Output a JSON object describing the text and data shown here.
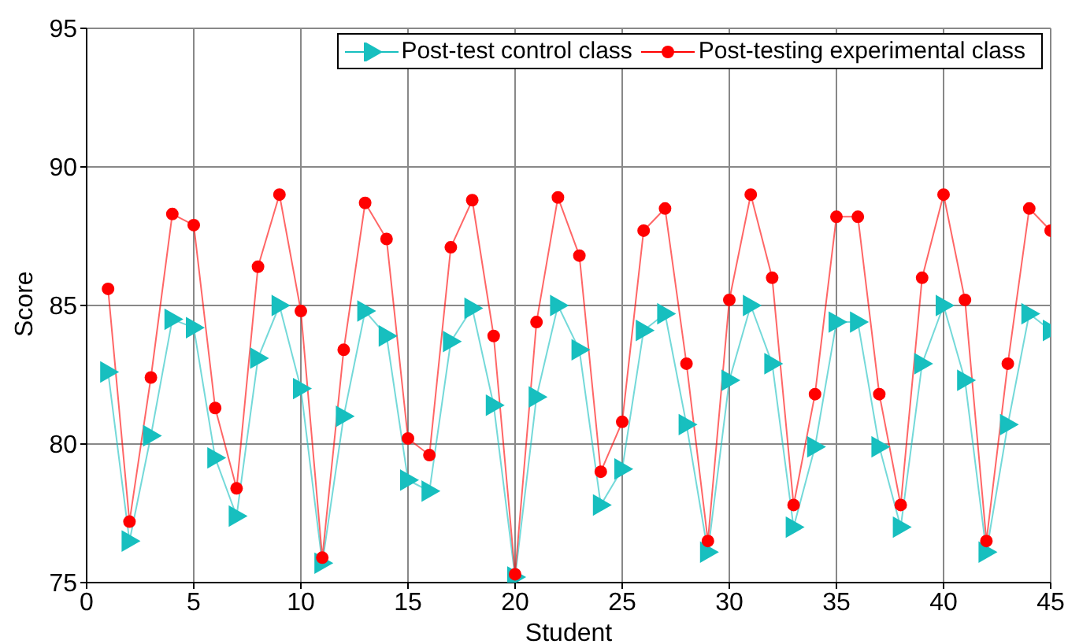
{
  "chart_data": {
    "type": "line",
    "xlabel": "Student",
    "ylabel": "Score",
    "x": [
      1,
      2,
      3,
      4,
      5,
      6,
      7,
      8,
      9,
      10,
      11,
      12,
      13,
      14,
      15,
      16,
      17,
      18,
      19,
      20,
      21,
      22,
      23,
      24,
      25,
      26,
      27,
      28,
      29,
      30,
      31,
      32,
      33,
      34,
      35,
      36,
      37,
      38,
      39,
      40,
      41,
      42,
      43,
      44,
      45
    ],
    "series": [
      {
        "name": "Post-test control class",
        "color": "#17bfbf",
        "marker": "triangle",
        "values": [
          82.6,
          76.5,
          80.3,
          84.5,
          84.2,
          79.5,
          77.4,
          83.1,
          85.0,
          82.0,
          75.7,
          81.0,
          84.8,
          83.9,
          78.7,
          78.3,
          83.7,
          84.9,
          81.4,
          75.2,
          81.7,
          85.0,
          83.4,
          77.8,
          79.1,
          84.1,
          84.7,
          80.7,
          76.1,
          82.3,
          85.0,
          82.9,
          77.0,
          79.9,
          84.4,
          84.4,
          79.9,
          77.0,
          82.9,
          85.0,
          82.3,
          76.1,
          80.7,
          84.7,
          84.1
        ]
      },
      {
        "name": "Post-testing experimental class",
        "color": "#ff0000",
        "marker": "circle",
        "values": [
          85.6,
          77.2,
          82.4,
          88.3,
          87.9,
          81.3,
          78.4,
          86.4,
          89.0,
          84.8,
          75.9,
          83.4,
          88.7,
          87.4,
          80.2,
          79.6,
          87.1,
          88.8,
          83.9,
          75.3,
          84.4,
          88.9,
          86.8,
          79.0,
          80.8,
          87.7,
          88.5,
          82.9,
          76.5,
          85.2,
          89.0,
          86.0,
          77.8,
          81.8,
          88.2,
          88.2,
          81.8,
          77.8,
          86.0,
          89.0,
          85.2,
          76.5,
          82.9,
          88.5,
          87.7
        ]
      }
    ],
    "xlim": [
      0,
      45
    ],
    "xticks": [
      0,
      5,
      10,
      15,
      20,
      25,
      30,
      35,
      40,
      45
    ],
    "ylim": [
      75,
      95
    ],
    "yticks": [
      75,
      80,
      85,
      90,
      95
    ],
    "grid": true,
    "legend": "top right",
    "line_style": "solid"
  }
}
